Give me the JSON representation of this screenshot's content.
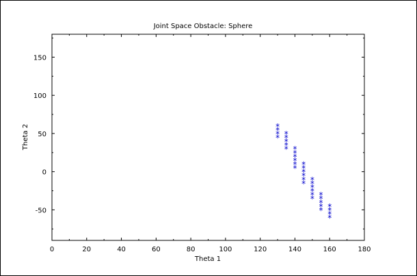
{
  "chart_data": {
    "type": "scatter",
    "title": "Joint Space Obstacle: Sphere",
    "xlabel": "Theta 1",
    "ylabel": "Theta 2",
    "xlim": [
      0,
      180
    ],
    "ylim": [
      -90,
      180
    ],
    "xticks": [
      0,
      20,
      40,
      60,
      80,
      100,
      120,
      140,
      160,
      180
    ],
    "yticks": [
      -50,
      0,
      50,
      100,
      150
    ],
    "grid": false,
    "marker": "*",
    "marker_color": "#0000cc",
    "series": [
      {
        "points": [
          [
            130,
            60
          ],
          [
            130,
            55
          ],
          [
            130,
            50
          ],
          [
            130,
            45
          ],
          [
            135,
            50
          ],
          [
            135,
            45
          ],
          [
            135,
            40
          ],
          [
            135,
            35
          ],
          [
            135,
            30
          ],
          [
            140,
            30
          ],
          [
            140,
            25
          ],
          [
            140,
            20
          ],
          [
            140,
            15
          ],
          [
            140,
            10
          ],
          [
            140,
            5
          ],
          [
            145,
            10
          ],
          [
            145,
            5
          ],
          [
            145,
            0
          ],
          [
            145,
            -5
          ],
          [
            145,
            -10
          ],
          [
            145,
            -15
          ],
          [
            150,
            -10
          ],
          [
            150,
            -15
          ],
          [
            150,
            -20
          ],
          [
            150,
            -25
          ],
          [
            150,
            -30
          ],
          [
            150,
            -35
          ],
          [
            155,
            -30
          ],
          [
            155,
            -35
          ],
          [
            155,
            -40
          ],
          [
            155,
            -45
          ],
          [
            155,
            -50
          ],
          [
            160,
            -45
          ],
          [
            160,
            -50
          ],
          [
            160,
            -55
          ],
          [
            160,
            -60
          ]
        ]
      }
    ]
  }
}
